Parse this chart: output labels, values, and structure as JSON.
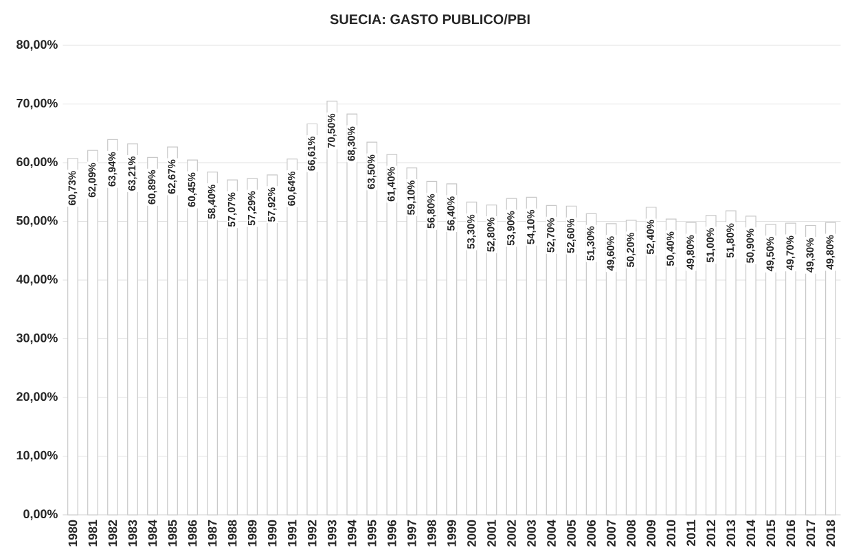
{
  "chart_data": {
    "type": "bar",
    "title": "SUECIA: GASTO PUBLICO/PBI",
    "categories": [
      "1980",
      "1981",
      "1982",
      "1983",
      "1984",
      "1985",
      "1986",
      "1987",
      "1988",
      "1989",
      "1990",
      "1991",
      "1992",
      "1993",
      "1994",
      "1995",
      "1996",
      "1997",
      "1998",
      "1999",
      "2000",
      "2001",
      "2002",
      "2003",
      "2004",
      "2005",
      "2006",
      "2007",
      "2008",
      "2009",
      "2010",
      "2011",
      "2012",
      "2013",
      "2014",
      "2015",
      "2016",
      "2017",
      "2018"
    ],
    "values": [
      60.73,
      62.09,
      63.94,
      63.21,
      60.89,
      62.67,
      60.45,
      58.4,
      57.07,
      57.29,
      57.92,
      60.64,
      66.61,
      70.5,
      68.3,
      63.5,
      61.4,
      59.1,
      56.8,
      56.4,
      53.3,
      52.8,
      53.9,
      54.1,
      52.7,
      52.6,
      51.3,
      49.6,
      50.2,
      52.4,
      50.4,
      49.8,
      51.0,
      51.8,
      50.9,
      49.5,
      49.7,
      49.3,
      49.8
    ],
    "value_labels": [
      "60,73%",
      "62,09%",
      "63,94%",
      "63,21%",
      "60,89%",
      "62,67%",
      "60,45%",
      "58,40%",
      "57,07%",
      "57,29%",
      "57,92%",
      "60,64%",
      "66,61%",
      "70,50%",
      "68,30%",
      "63,50%",
      "61,40%",
      "59,10%",
      "56,80%",
      "56,40%",
      "53,30%",
      "52,80%",
      "53,90%",
      "54,10%",
      "52,70%",
      "52,60%",
      "51,30%",
      "49,60%",
      "50,20%",
      "52,40%",
      "50,40%",
      "49,80%",
      "51,00%",
      "51,80%",
      "50,90%",
      "49,50%",
      "49,70%",
      "49,30%",
      "49,80%"
    ],
    "color": "#ffffff",
    "ylim": [
      0,
      80
    ],
    "yticks": [
      {
        "value": 0,
        "label": "0,00%"
      },
      {
        "value": 10,
        "label": "10,00%"
      },
      {
        "value": 20,
        "label": "20,00%"
      },
      {
        "value": 30,
        "label": "30,00%"
      },
      {
        "value": 40,
        "label": "40,00%"
      },
      {
        "value": 50,
        "label": "50,00%"
      },
      {
        "value": 60,
        "label": "60,00%"
      },
      {
        "value": 70,
        "label": "70,00%"
      },
      {
        "value": 80,
        "label": "80,00%"
      }
    ],
    "grid": "y"
  }
}
